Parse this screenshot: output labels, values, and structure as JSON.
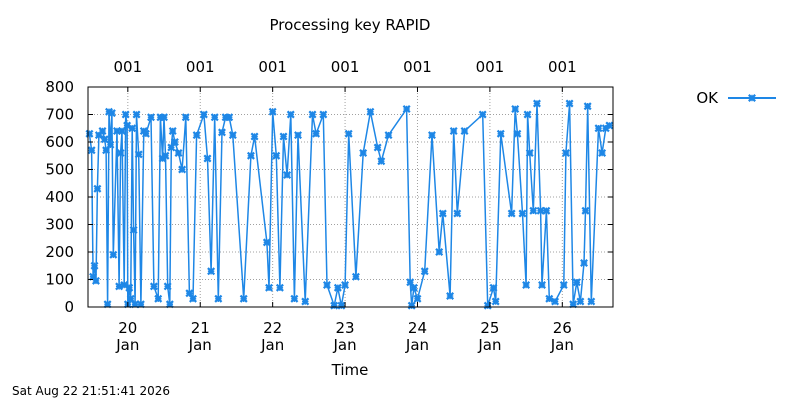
{
  "chart_data": {
    "type": "line",
    "title": "Processing key RAPID",
    "xlabel": "Time",
    "ylabel": "",
    "footer": "Sat Aug 22 21:51:41 2026",
    "ylim": [
      0,
      800
    ],
    "xlim": [
      19.45,
      26.7
    ],
    "grid": true,
    "legend_position": "top-right",
    "colors": {
      "series": "#1e87e6"
    },
    "y_ticks": [
      {
        "value": 0,
        "label": "0"
      },
      {
        "value": 100,
        "label": "100"
      },
      {
        "value": 200,
        "label": "200"
      },
      {
        "value": 300,
        "label": "300"
      },
      {
        "value": 400,
        "label": "400"
      },
      {
        "value": 500,
        "label": "500"
      },
      {
        "value": 600,
        "label": "600"
      },
      {
        "value": 700,
        "label": "700"
      },
      {
        "value": 800,
        "label": "800"
      }
    ],
    "x_ticks": [
      {
        "value": 20,
        "day": "20",
        "month": "Jan"
      },
      {
        "value": 21,
        "day": "21",
        "month": "Jan"
      },
      {
        "value": 22,
        "day": "22",
        "month": "Jan"
      },
      {
        "value": 23,
        "day": "23",
        "month": "Jan"
      },
      {
        "value": 24,
        "day": "24",
        "month": "Jan"
      },
      {
        "value": 25,
        "day": "25",
        "month": "Jan"
      },
      {
        "value": 26,
        "day": "26",
        "month": "Jan"
      }
    ],
    "top_ticks": [
      {
        "value": 20,
        "label": "001"
      },
      {
        "value": 21,
        "label": "001"
      },
      {
        "value": 22,
        "label": "001"
      },
      {
        "value": 23,
        "label": "001"
      },
      {
        "value": 24,
        "label": "001"
      },
      {
        "value": 25,
        "label": "001"
      },
      {
        "value": 26,
        "label": "001"
      }
    ],
    "series": [
      {
        "name": "OK",
        "marker": "x",
        "points": [
          [
            19.47,
            630
          ],
          [
            19.5,
            570
          ],
          [
            19.52,
            110
          ],
          [
            19.54,
            150
          ],
          [
            19.56,
            95
          ],
          [
            19.58,
            430
          ],
          [
            19.6,
            625
          ],
          [
            19.65,
            640
          ],
          [
            19.68,
            610
          ],
          [
            19.7,
            570
          ],
          [
            19.72,
            10
          ],
          [
            19.74,
            710
          ],
          [
            19.76,
            590
          ],
          [
            19.78,
            705
          ],
          [
            19.8,
            190
          ],
          [
            19.85,
            640
          ],
          [
            19.88,
            75
          ],
          [
            19.9,
            560
          ],
          [
            19.92,
            640
          ],
          [
            19.95,
            80
          ],
          [
            19.97,
            700
          ],
          [
            19.99,
            660
          ],
          [
            20.0,
            10
          ],
          [
            20.02,
            70
          ],
          [
            20.04,
            30
          ],
          [
            20.06,
            650
          ],
          [
            20.08,
            280
          ],
          [
            20.1,
            10
          ],
          [
            20.12,
            700
          ],
          [
            20.15,
            555
          ],
          [
            20.18,
            10
          ],
          [
            20.22,
            640
          ],
          [
            20.25,
            630
          ],
          [
            20.32,
            690
          ],
          [
            20.36,
            75
          ],
          [
            20.42,
            30
          ],
          [
            20.45,
            690
          ],
          [
            20.48,
            540
          ],
          [
            20.5,
            690
          ],
          [
            20.52,
            550
          ],
          [
            20.55,
            75
          ],
          [
            20.58,
            10
          ],
          [
            20.6,
            580
          ],
          [
            20.62,
            640
          ],
          [
            20.65,
            600
          ],
          [
            20.7,
            560
          ],
          [
            20.75,
            500
          ],
          [
            20.8,
            690
          ],
          [
            20.85,
            50
          ],
          [
            20.9,
            30
          ],
          [
            20.95,
            625
          ],
          [
            21.05,
            700
          ],
          [
            21.1,
            540
          ],
          [
            21.15,
            130
          ],
          [
            21.2,
            690
          ],
          [
            21.25,
            30
          ],
          [
            21.3,
            635
          ],
          [
            21.35,
            690
          ],
          [
            21.4,
            690
          ],
          [
            21.45,
            625
          ],
          [
            21.6,
            30
          ],
          [
            21.7,
            550
          ],
          [
            21.75,
            620
          ],
          [
            21.92,
            235
          ],
          [
            21.95,
            70
          ],
          [
            22.0,
            710
          ],
          [
            22.05,
            550
          ],
          [
            22.1,
            70
          ],
          [
            22.15,
            620
          ],
          [
            22.2,
            480
          ],
          [
            22.25,
            700
          ],
          [
            22.3,
            30
          ],
          [
            22.35,
            625
          ],
          [
            22.45,
            20
          ],
          [
            22.55,
            700
          ],
          [
            22.6,
            630
          ],
          [
            22.7,
            700
          ],
          [
            22.75,
            80
          ],
          [
            22.85,
            5
          ],
          [
            22.9,
            70
          ],
          [
            22.95,
            5
          ],
          [
            23.0,
            80
          ],
          [
            23.05,
            630
          ],
          [
            23.15,
            110
          ],
          [
            23.25,
            560
          ],
          [
            23.35,
            710
          ],
          [
            23.45,
            580
          ],
          [
            23.5,
            530
          ],
          [
            23.6,
            625
          ],
          [
            23.85,
            720
          ],
          [
            23.9,
            90
          ],
          [
            23.92,
            5
          ],
          [
            23.95,
            70
          ],
          [
            24.0,
            30
          ],
          [
            24.1,
            130
          ],
          [
            24.2,
            625
          ],
          [
            24.3,
            200
          ],
          [
            24.35,
            340
          ],
          [
            24.45,
            40
          ],
          [
            24.5,
            640
          ],
          [
            24.55,
            340
          ],
          [
            24.65,
            640
          ],
          [
            24.9,
            700
          ],
          [
            24.97,
            5
          ],
          [
            25.05,
            70
          ],
          [
            25.08,
            20
          ],
          [
            25.15,
            630
          ],
          [
            25.3,
            340
          ],
          [
            25.35,
            720
          ],
          [
            25.38,
            630
          ],
          [
            25.45,
            340
          ],
          [
            25.5,
            80
          ],
          [
            25.52,
            700
          ],
          [
            25.55,
            560
          ],
          [
            25.6,
            350
          ],
          [
            25.65,
            740
          ],
          [
            25.7,
            350
          ],
          [
            25.72,
            80
          ],
          [
            25.78,
            350
          ],
          [
            25.82,
            30
          ],
          [
            25.9,
            20
          ],
          [
            26.02,
            80
          ],
          [
            26.05,
            560
          ],
          [
            26.1,
            740
          ],
          [
            26.15,
            10
          ],
          [
            26.2,
            90
          ],
          [
            26.25,
            20
          ],
          [
            26.3,
            160
          ],
          [
            26.32,
            350
          ],
          [
            26.35,
            730
          ],
          [
            26.4,
            20
          ],
          [
            26.5,
            650
          ],
          [
            26.55,
            560
          ],
          [
            26.6,
            650
          ],
          [
            26.65,
            660
          ]
        ]
      }
    ]
  }
}
